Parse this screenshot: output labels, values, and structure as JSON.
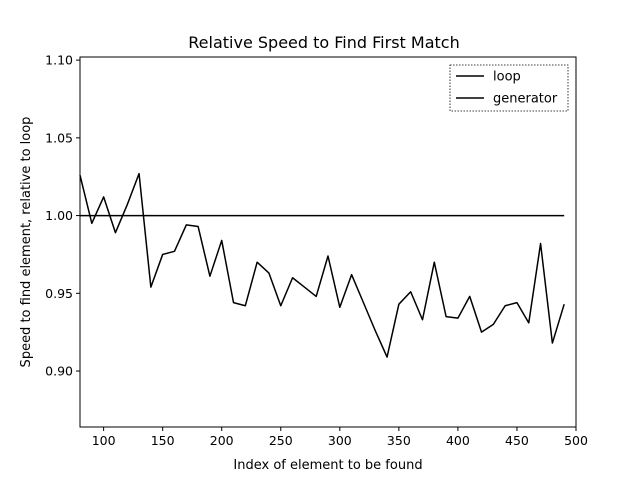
{
  "chart_data": {
    "type": "line",
    "title": "Relative Speed to Find First Match",
    "xlabel": "Index of element to be found",
    "ylabel": "Speed to find element, relative to loop",
    "xlim": [
      80,
      500
    ],
    "ylim": [
      0.864,
      1.102
    ],
    "xticks": [
      100,
      150,
      200,
      250,
      300,
      350,
      400,
      450,
      500
    ],
    "yticks": [
      0.9,
      0.95,
      1.0,
      1.05,
      1.1
    ],
    "xtick_labels": [
      "100",
      "150",
      "200",
      "250",
      "300",
      "350",
      "400",
      "450",
      "500"
    ],
    "ytick_labels": [
      "0.90",
      "0.95",
      "1.00",
      "1.05",
      "1.10"
    ],
    "grid": false,
    "legend_position": "top-right",
    "series": [
      {
        "name": "loop",
        "color": "#000000",
        "x": [
          80,
          490
        ],
        "y": [
          1.0,
          1.0
        ]
      },
      {
        "name": "generator",
        "color": "#000000",
        "x": [
          80,
          90,
          100,
          110,
          120,
          130,
          140,
          150,
          160,
          170,
          180,
          190,
          200,
          210,
          220,
          230,
          240,
          250,
          260,
          270,
          280,
          290,
          300,
          310,
          320,
          330,
          340,
          350,
          360,
          370,
          380,
          390,
          400,
          410,
          420,
          430,
          440,
          450,
          460,
          470,
          480,
          490
        ],
        "y": [
          1.026,
          0.995,
          1.012,
          0.989,
          1.007,
          1.027,
          0.954,
          0.975,
          0.977,
          0.994,
          0.993,
          0.961,
          0.984,
          0.944,
          0.942,
          0.97,
          0.963,
          0.942,
          0.96,
          0.954,
          0.948,
          0.974,
          0.941,
          0.962,
          0.944,
          0.926,
          0.909,
          0.943,
          0.951,
          0.933,
          0.97,
          0.935,
          0.934,
          0.948,
          0.925,
          0.93,
          0.942,
          0.944,
          0.931,
          0.982,
          0.918,
          0.943
        ]
      }
    ]
  }
}
